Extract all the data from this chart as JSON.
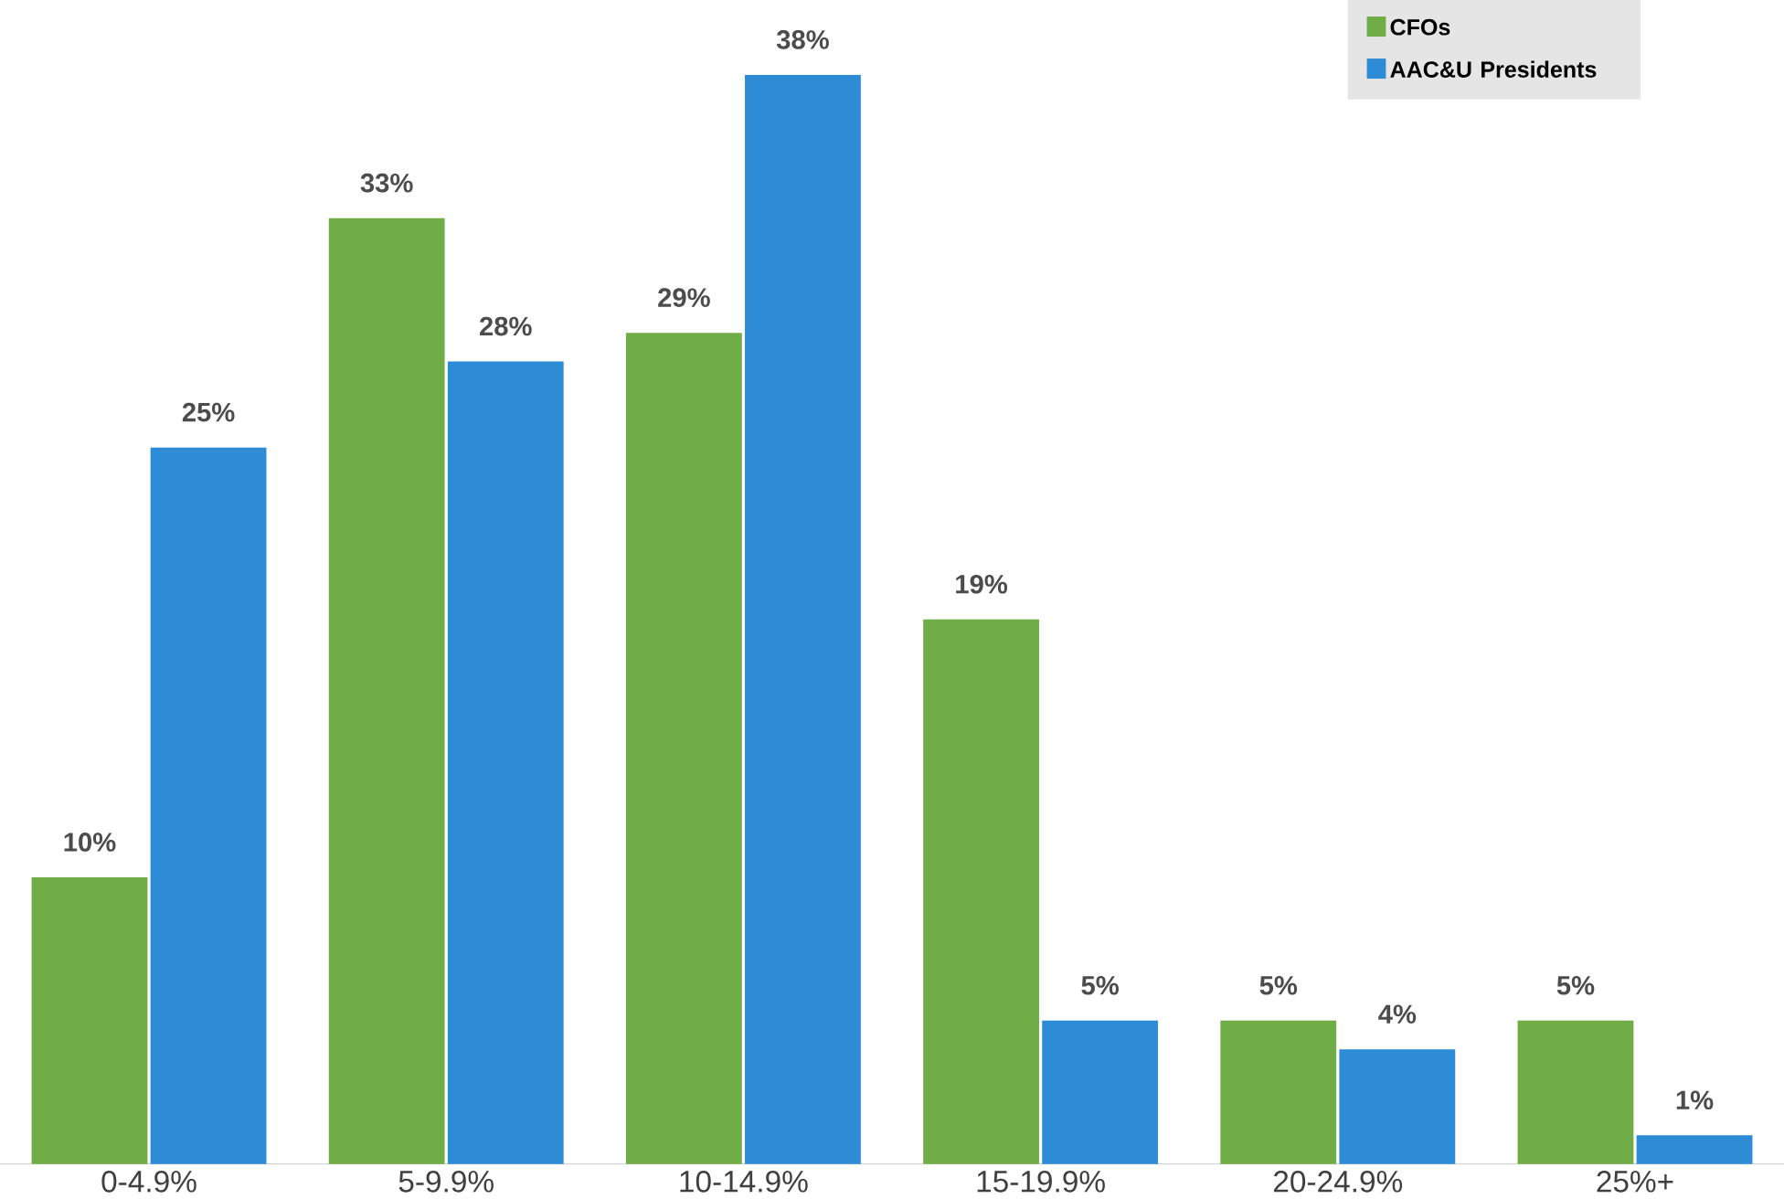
{
  "chart_data": {
    "type": "bar",
    "categories": [
      "0-4.9%",
      "5-9.9%",
      "10-14.9%",
      "15-19.9%",
      "20-24.9%",
      "25%+"
    ],
    "series": [
      {
        "name": "CFOs",
        "color": "#70ad47",
        "values": [
          10,
          33,
          29,
          19,
          5,
          5
        ],
        "value_labels": [
          "10%",
          "33%",
          "29%",
          "19%",
          "5%",
          "5%"
        ]
      },
      {
        "name": "AAC&U Presidents",
        "color": "#2e8bd6",
        "values": [
          25,
          28,
          38,
          5,
          4,
          1
        ],
        "value_labels": [
          "25%",
          "28%",
          "38%",
          "5%",
          "4%",
          "1%"
        ]
      }
    ],
    "legend": "top right"
  }
}
